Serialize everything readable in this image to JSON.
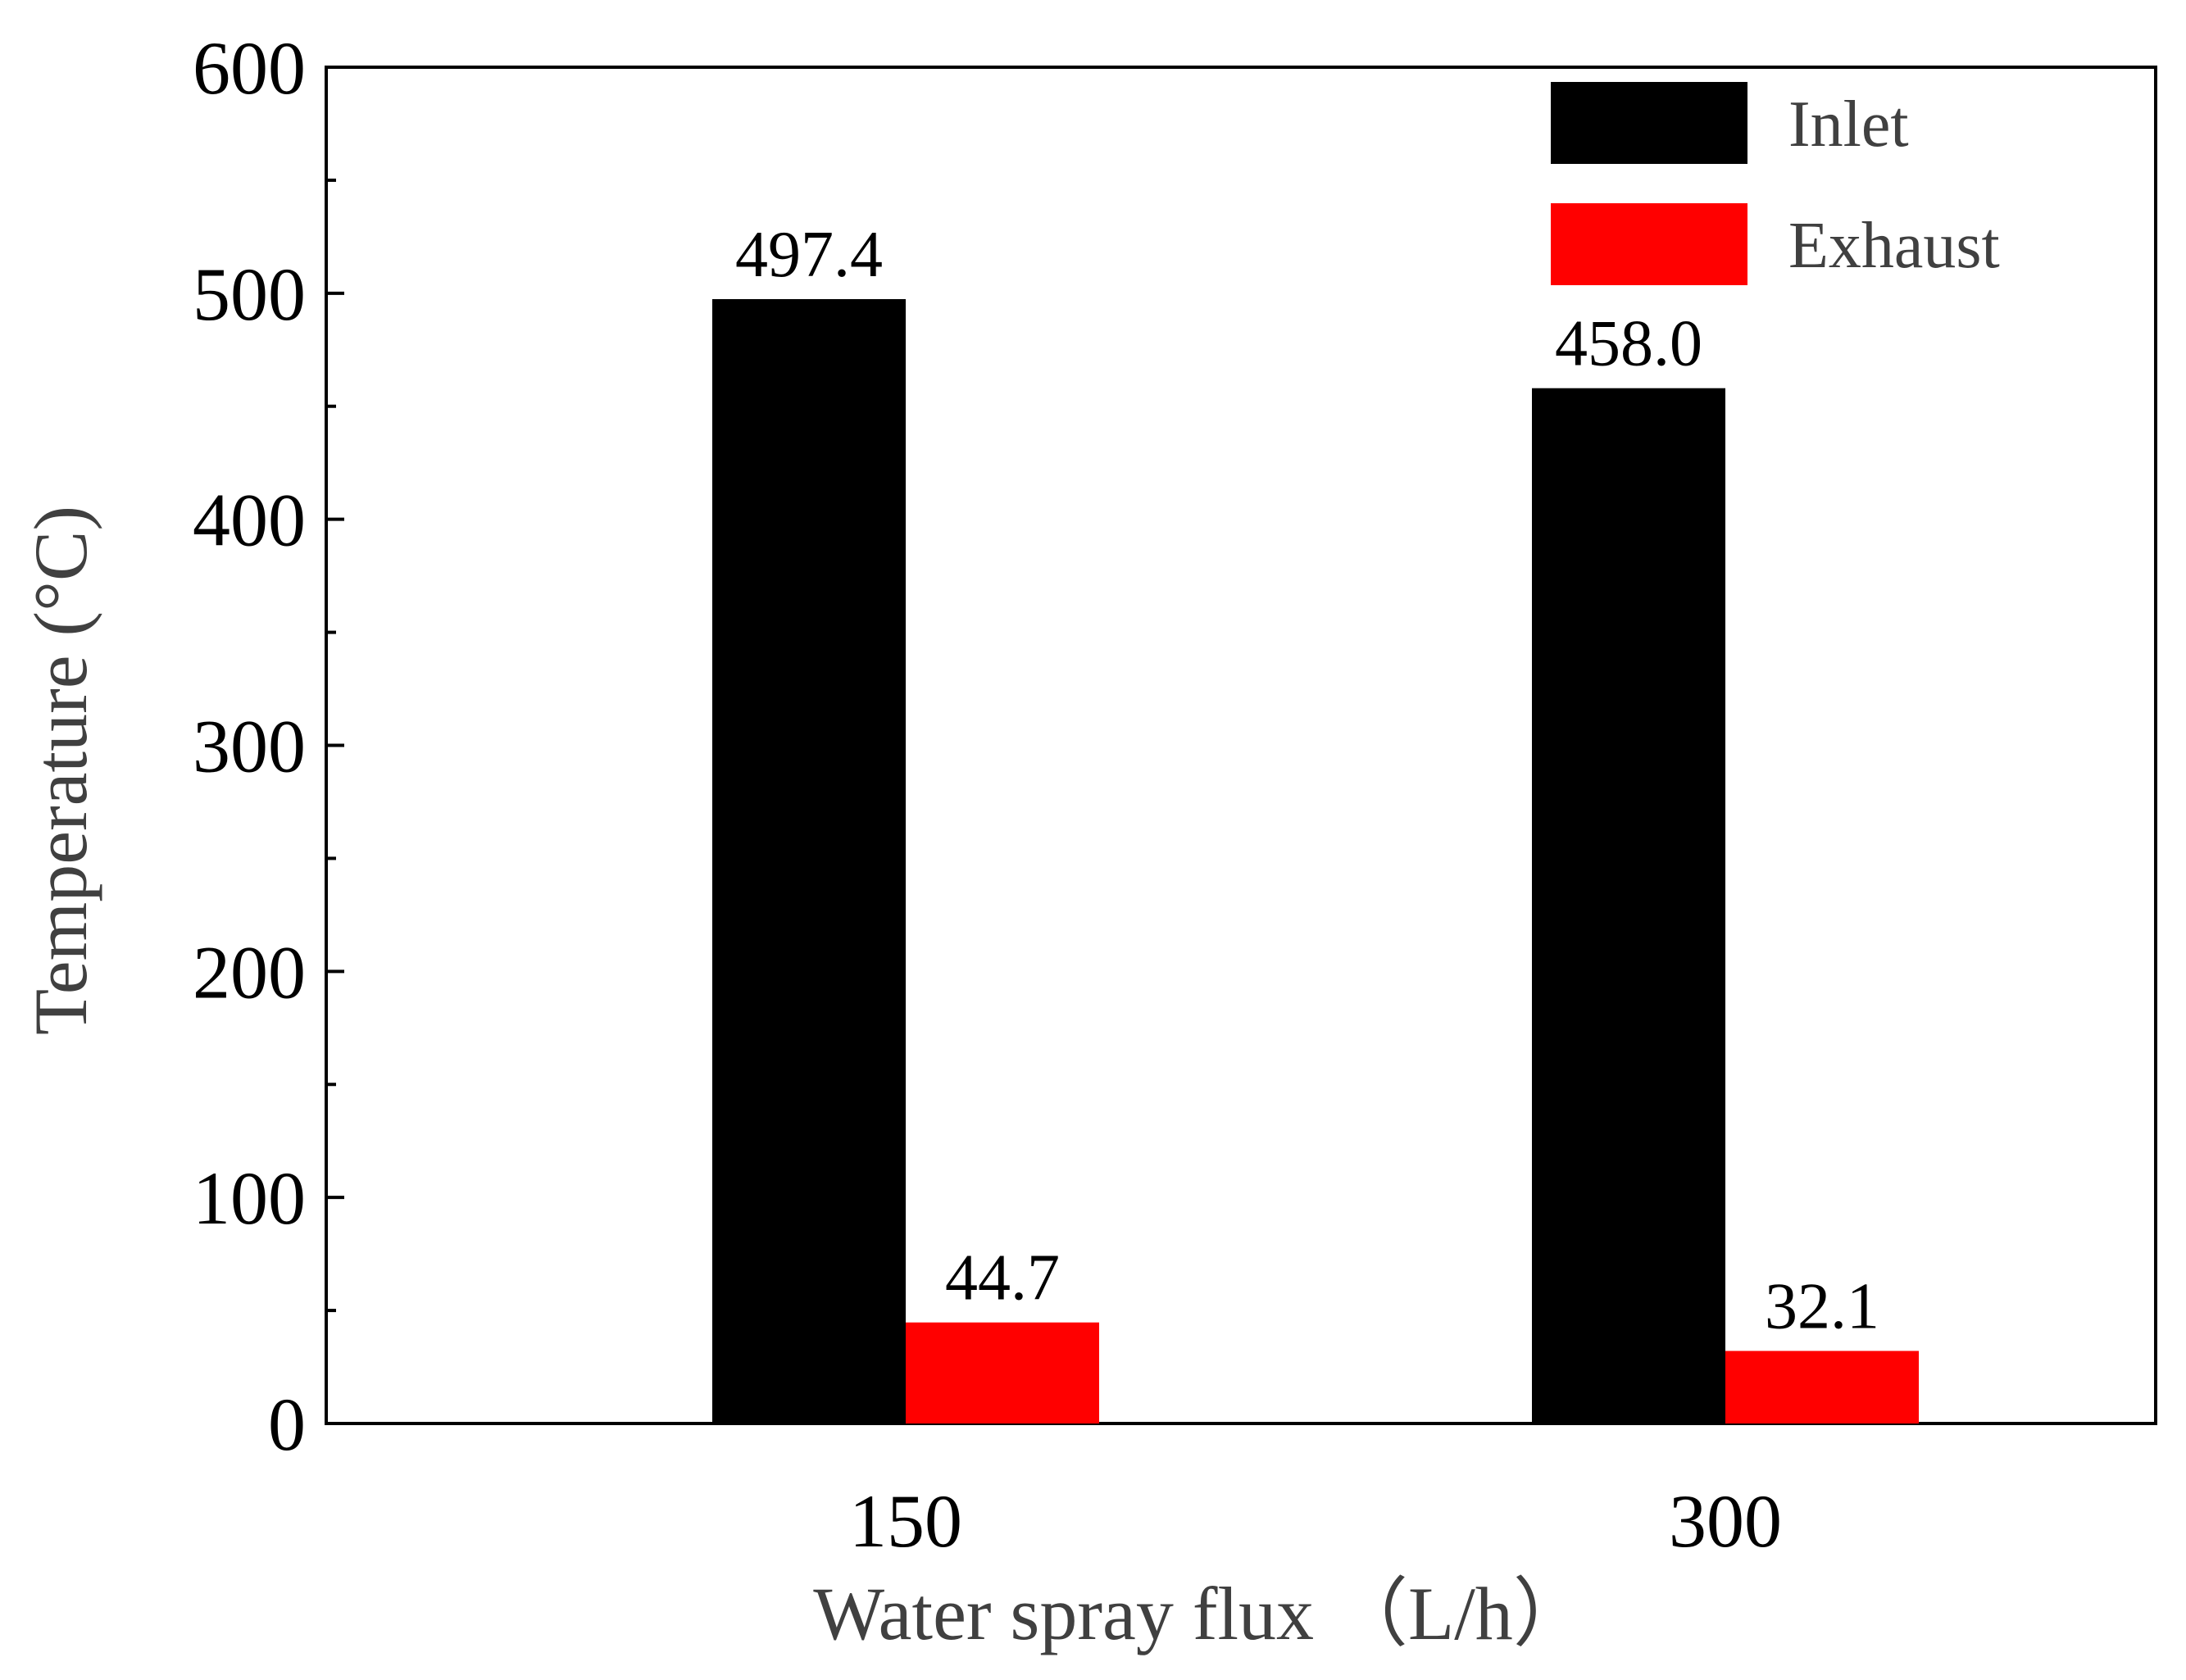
{
  "chart_data": {
    "type": "bar",
    "categories": [
      "150",
      "300"
    ],
    "series": [
      {
        "name": "Inlet",
        "values": [
          497.4,
          458.0
        ],
        "color": "#000000"
      },
      {
        "name": "Exhaust",
        "values": [
          44.7,
          32.1
        ],
        "color": "#ff0000"
      }
    ],
    "data_labels": [
      [
        "497.4",
        "458.0"
      ],
      [
        "44.7",
        "32.1"
      ]
    ],
    "xlabel": "Water spray flux （L/h）",
    "ylabel": "Temperature (°C)",
    "ylim": [
      0,
      600
    ],
    "yticks": [
      0,
      100,
      200,
      300,
      400,
      500,
      600
    ],
    "yticks_minor_step": 50,
    "grid": false,
    "legend_position": "top-right"
  }
}
